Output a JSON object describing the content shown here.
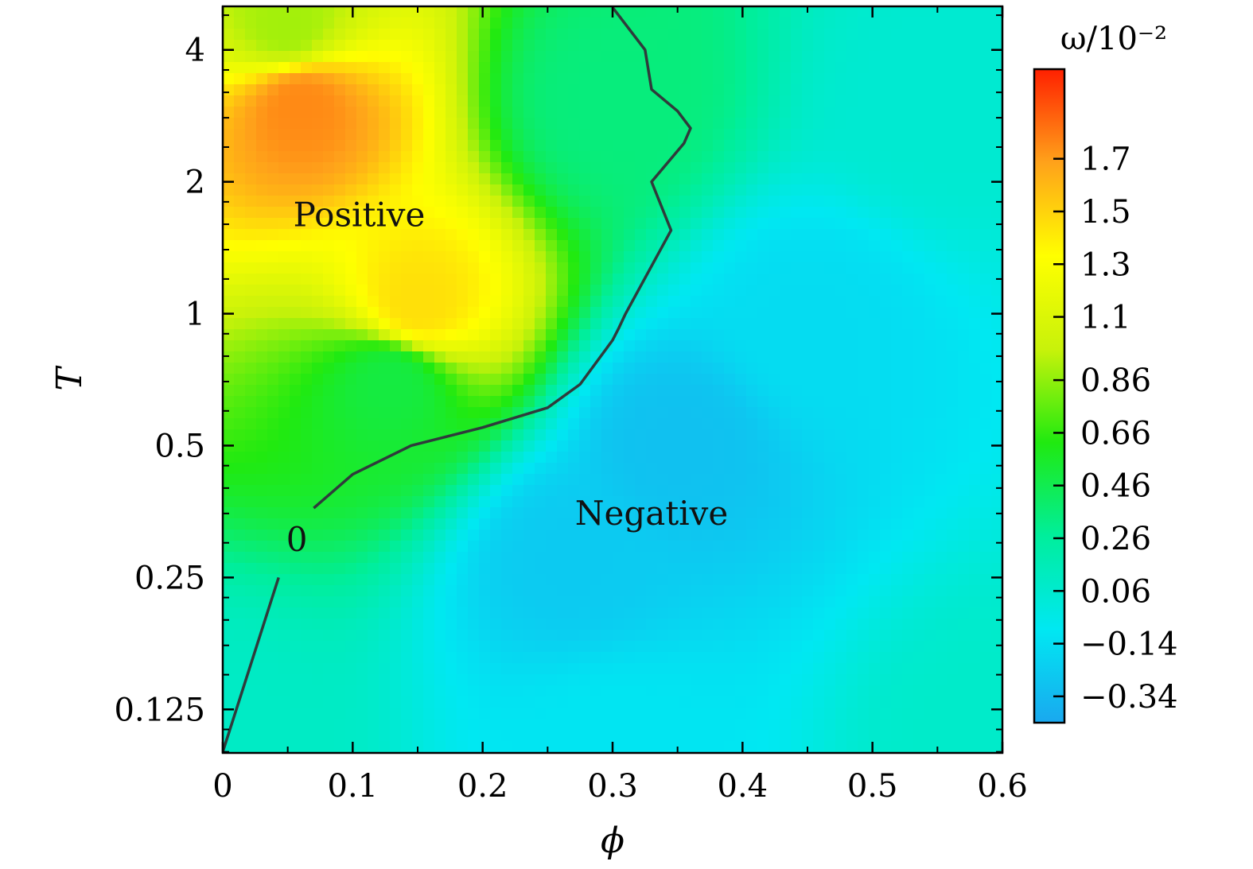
{
  "chart_data": {
    "type": "heatmap",
    "title": "",
    "xlabel": "ϕ",
    "ylabel": "T",
    "xlim": [
      0,
      0.6
    ],
    "ylim_log2": [
      -3.33,
      2.33
    ],
    "x_ticks": [
      0,
      0.1,
      0.2,
      0.3,
      0.4,
      0.5,
      0.6
    ],
    "x_tick_labels": [
      "0",
      "0.1",
      "0.2",
      "0.3",
      "0.4",
      "0.5",
      "0.6"
    ],
    "y_ticks": [
      0.125,
      0.25,
      0.5,
      1,
      2,
      4
    ],
    "y_tick_labels": [
      "0.125",
      "0.25",
      "0.5",
      "1",
      "2",
      "4"
    ],
    "colorbar": {
      "title": "ω/10⁻²",
      "range": [
        -0.44,
        2.04
      ],
      "ticks": [
        1.7,
        1.5,
        1.3,
        1.1,
        0.86,
        0.66,
        0.46,
        0.26,
        0.06,
        -0.14,
        -0.34
      ],
      "tick_labels": [
        "1.7",
        "1.5",
        "1.3",
        "1.1",
        "0.86",
        "0.66",
        "0.46",
        "0.26",
        "0.06",
        "−0.14",
        "−0.34"
      ],
      "colormap": [
        "#1aa8ef",
        "#00e8f2",
        "#00ee9c",
        "#20ea10",
        "#c8f20a",
        "#ffff00",
        "#ffa21a",
        "#ff2000"
      ]
    },
    "field_features": [
      {
        "phi": 0.0,
        "T": 0.1,
        "omega": 0.1
      },
      {
        "phi": 0.3,
        "T": 0.1,
        "omega": -0.1
      },
      {
        "phi": 0.6,
        "T": 0.1,
        "omega": 0.08
      },
      {
        "phi": 0.06,
        "T": 3.0,
        "omega": 1.75
      },
      {
        "phi": 0.15,
        "T": 1.05,
        "omega": 1.45
      },
      {
        "phi": 0.13,
        "T": 0.7,
        "omega": 0.5
      },
      {
        "phi": 0.05,
        "T": 4.5,
        "omega": 0.9
      },
      {
        "phi": 0.3,
        "T": 3.0,
        "omega": 0.35
      },
      {
        "phi": 0.35,
        "T": 0.5,
        "omega": -0.3
      },
      {
        "phi": 0.27,
        "T": 0.28,
        "omega": -0.25
      },
      {
        "phi": 0.45,
        "T": 0.95,
        "omega": -0.15
      },
      {
        "phi": 0.55,
        "T": 3.0,
        "omega": 0.05
      }
    ],
    "zero_contour": {
      "label": "0",
      "points": [
        [
          0.0,
          0.1
        ],
        [
          0.043,
          0.25
        ],
        [
          0.07,
          0.36
        ],
        [
          0.1,
          0.43
        ],
        [
          0.145,
          0.5
        ],
        [
          0.2,
          0.55
        ],
        [
          0.25,
          0.61
        ],
        [
          0.275,
          0.69
        ],
        [
          0.3,
          0.87
        ],
        [
          0.305,
          0.93
        ],
        [
          0.31,
          1.0
        ],
        [
          0.345,
          1.55
        ],
        [
          0.33,
          2.0
        ],
        [
          0.355,
          2.45
        ],
        [
          0.36,
          2.65
        ],
        [
          0.35,
          2.9
        ],
        [
          0.33,
          3.25
        ],
        [
          0.325,
          4.0
        ],
        [
          0.3,
          5.0
        ]
      ]
    },
    "annotations": [
      {
        "text": "Positive",
        "phi": 0.105,
        "T": 1.68
      },
      {
        "text": "Negative",
        "phi": 0.33,
        "T": 0.35
      }
    ]
  }
}
